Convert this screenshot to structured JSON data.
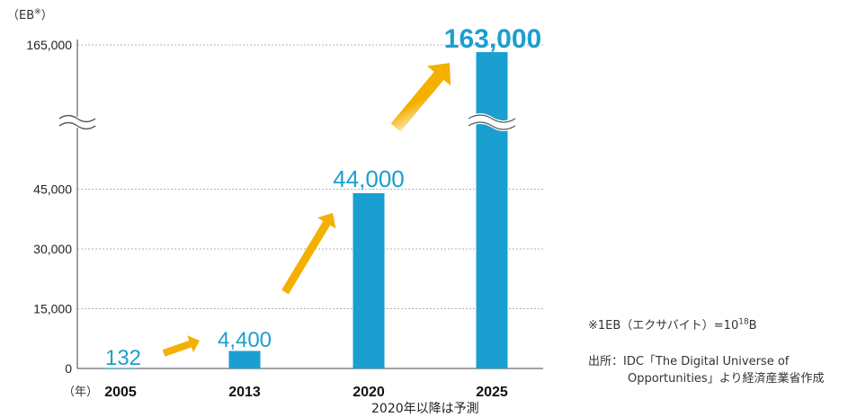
{
  "chart_data": {
    "type": "bar",
    "unit_label": "（EB",
    "unit_mark": "※",
    "unit_close": "）",
    "year_marker": "（年）",
    "categories": [
      "2005",
      "2013",
      "2020",
      "2025"
    ],
    "values": [
      132,
      4400,
      44000,
      163000
    ],
    "value_labels": [
      "132",
      "4,400",
      "44,000",
      "163,000"
    ],
    "y_ticks": [
      {
        "value": 0,
        "label": "0"
      },
      {
        "value": 15000,
        "label": "15,000"
      },
      {
        "value": 30000,
        "label": "30,000"
      },
      {
        "value": 45000,
        "label": "45,000"
      },
      {
        "value": 165000,
        "label": "165,000"
      }
    ],
    "axis_break": {
      "from": 45000,
      "to": 165000
    },
    "forecast_note": "2020年以降は予測",
    "footnote_unit": "※1EB（エクサバイト）=10",
    "footnote_unit_exp": "18",
    "footnote_unit_end": "B",
    "source_line1": "出所：IDC「The Digital Universe of",
    "source_line2": "Opportunities」より経済産業省作成",
    "colors": {
      "bar": "#1a9fd0",
      "label": "#1a9fd0",
      "arrow": "#f4b000",
      "grid": "#9a9a9a"
    }
  }
}
